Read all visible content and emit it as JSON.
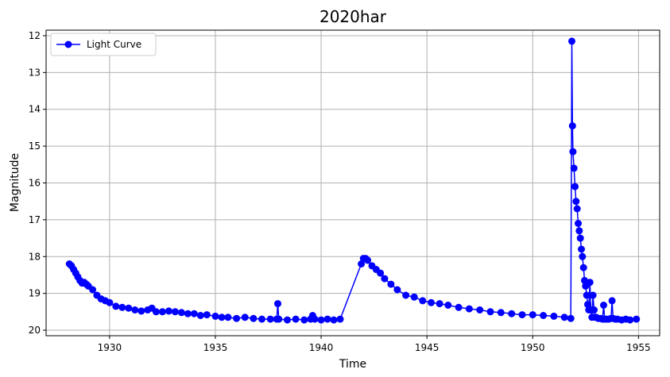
{
  "chart_data": {
    "type": "line",
    "title": "2020har",
    "xlabel": "Time",
    "ylabel": "Magnitude",
    "xlim": [
      1927.0,
      1956.0
    ],
    "ylim": [
      20.15,
      11.85
    ],
    "y_inverted": true,
    "grid": true,
    "legend_placement": "top-left",
    "xticks": [
      1930,
      1935,
      1940,
      1945,
      1950,
      1955
    ],
    "yticks": [
      12,
      13,
      14,
      15,
      16,
      17,
      18,
      19,
      20
    ],
    "series": [
      {
        "name": "Light Curve",
        "color": "#0000ff",
        "marker": "circle",
        "x": [
          1928.1,
          1928.2,
          1928.3,
          1928.4,
          1928.5,
          1928.6,
          1928.7,
          1928.8,
          1928.9,
          1929.0,
          1929.2,
          1929.4,
          1929.6,
          1929.8,
          1930.0,
          1930.3,
          1930.6,
          1930.9,
          1931.2,
          1931.5,
          1931.8,
          1932.0,
          1932.2,
          1932.5,
          1932.8,
          1933.1,
          1933.4,
          1933.7,
          1934.0,
          1934.3,
          1934.6,
          1935.0,
          1935.3,
          1935.6,
          1936.0,
          1936.4,
          1936.8,
          1937.2,
          1937.6,
          1937.9,
          1937.95,
          1938.0,
          1938.4,
          1938.8,
          1939.2,
          1939.5,
          1939.6,
          1939.7,
          1940.0,
          1940.3,
          1940.6,
          1940.9,
          1941.9,
          1942.0,
          1942.1,
          1942.2,
          1942.4,
          1942.6,
          1942.8,
          1943.0,
          1943.3,
          1943.6,
          1944.0,
          1944.4,
          1944.8,
          1945.2,
          1945.6,
          1946.0,
          1946.5,
          1947.0,
          1947.5,
          1948.0,
          1948.5,
          1949.0,
          1949.5,
          1950.0,
          1950.5,
          1951.0,
          1951.5,
          1951.8,
          1951.85,
          1951.88,
          1951.9,
          1951.95,
          1952.0,
          1952.05,
          1952.1,
          1952.15,
          1952.2,
          1952.25,
          1952.3,
          1952.35,
          1952.4,
          1952.45,
          1952.5,
          1952.55,
          1952.6,
          1952.65,
          1952.7,
          1952.75,
          1952.8,
          1952.85,
          1952.9,
          1952.95,
          1953.0,
          1953.1,
          1953.2,
          1953.3,
          1953.35,
          1953.4,
          1953.5,
          1953.6,
          1953.7,
          1953.75,
          1953.8,
          1953.9,
          1954.0,
          1954.2,
          1954.4,
          1954.6,
          1954.9
        ],
        "y": [
          18.2,
          18.25,
          18.35,
          18.45,
          18.55,
          18.65,
          18.72,
          18.7,
          18.75,
          18.8,
          18.9,
          19.05,
          19.15,
          19.2,
          19.25,
          19.35,
          19.38,
          19.4,
          19.45,
          19.48,
          19.45,
          19.4,
          19.5,
          19.5,
          19.48,
          19.5,
          19.52,
          19.55,
          19.55,
          19.6,
          19.58,
          19.62,
          19.65,
          19.65,
          19.68,
          19.65,
          19.68,
          19.7,
          19.7,
          19.7,
          19.28,
          19.7,
          19.72,
          19.7,
          19.72,
          19.7,
          19.6,
          19.7,
          19.72,
          19.7,
          19.72,
          19.7,
          18.2,
          18.05,
          18.05,
          18.1,
          18.25,
          18.35,
          18.45,
          18.6,
          18.75,
          18.9,
          19.05,
          19.1,
          19.2,
          19.25,
          19.28,
          19.32,
          19.38,
          19.42,
          19.45,
          19.5,
          19.52,
          19.55,
          19.58,
          19.58,
          19.6,
          19.62,
          19.65,
          19.68,
          12.15,
          14.45,
          15.15,
          15.6,
          16.1,
          16.5,
          16.7,
          17.1,
          17.3,
          17.5,
          17.8,
          18.0,
          18.3,
          18.65,
          18.8,
          19.05,
          19.3,
          19.45,
          18.7,
          19.45,
          19.65,
          19.05,
          19.45,
          19.65,
          19.65,
          19.68,
          19.68,
          19.7,
          19.32,
          19.7,
          19.7,
          19.7,
          19.68,
          19.2,
          19.68,
          19.7,
          19.7,
          19.72,
          19.7,
          19.72,
          19.7
        ]
      }
    ]
  }
}
